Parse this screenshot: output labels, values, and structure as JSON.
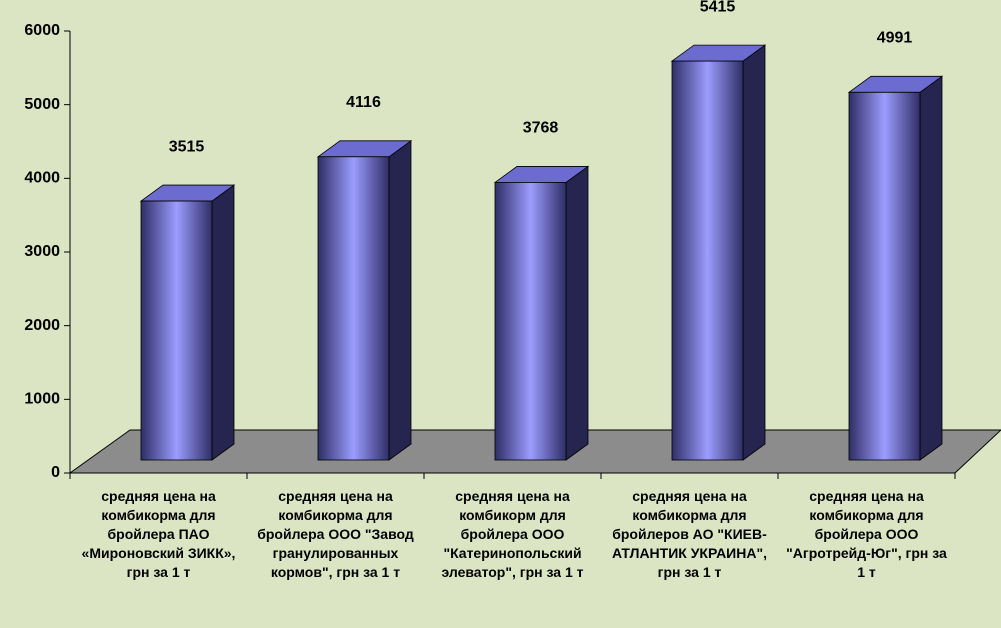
{
  "chart_data": {
    "type": "bar",
    "categories": [
      "средняя цена на комбикорма для бройлера ПАО «Мироновский ЗИКК», грн за 1 т",
      "средняя цена на комбикорма для бройлера ООО \"Завод гранулированных кормов\", грн за 1 т",
      "средняя цена на комбикорм для бройлера ООО \"Катеринопольский элеватор\", грн за 1 т",
      "средняя цена на комбикорма для бройлеров АО \"КИЕВ-АТЛАНТИК УКРАИНА\", грн за 1 т",
      "средняя цена на комбикорма для бройлера ООО \"Агротрейд-Юг\", грн за 1 т"
    ],
    "values": [
      3515,
      4116,
      3768,
      5415,
      4991
    ],
    "color": "#9999ff",
    "ylim": [
      0,
      6000
    ],
    "yticks": [
      0,
      1000,
      2000,
      3000,
      4000,
      5000,
      6000
    ]
  }
}
